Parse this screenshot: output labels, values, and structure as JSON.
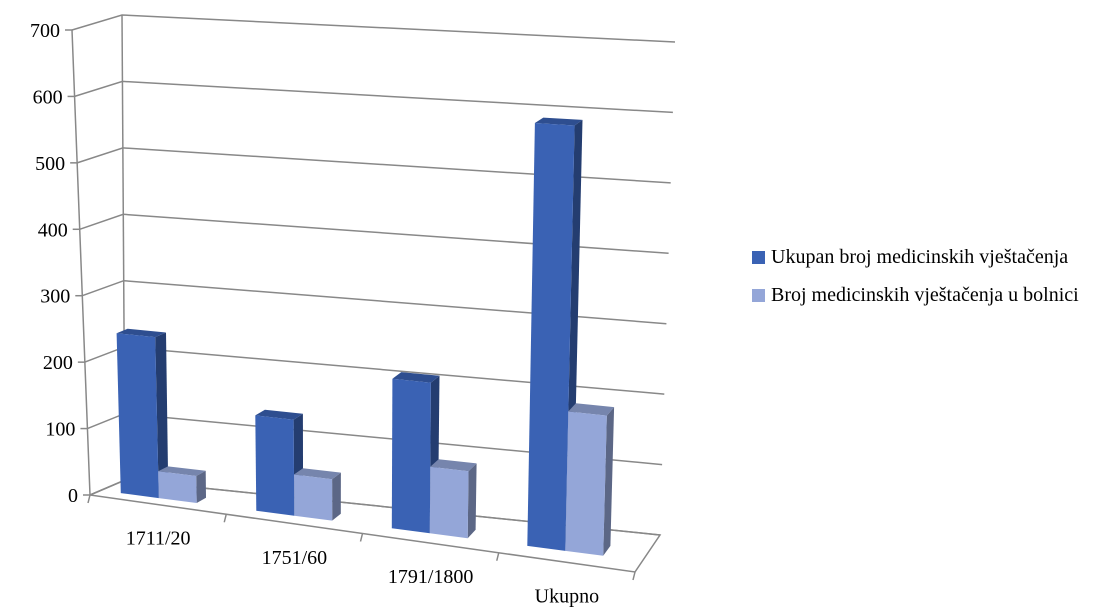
{
  "chart_data": {
    "type": "bar3d",
    "categories": [
      "1711/20",
      "1751/60",
      "1791/1800",
      "Ukupno"
    ],
    "series": [
      {
        "name": "Ukupan broj medicinskih vještačenja",
        "color": "#3a62b4",
        "values": [
          240,
          140,
          215,
          595
        ]
      },
      {
        "name": "Broj medicinskih vještačenja u bolnici",
        "color": "#94a6d8",
        "values": [
          40,
          60,
          95,
          195
        ]
      }
    ],
    "ylim": [
      0,
      700
    ],
    "yticks": [
      0,
      100,
      200,
      300,
      400,
      500,
      600,
      700
    ],
    "grid": true,
    "legend": "right"
  }
}
